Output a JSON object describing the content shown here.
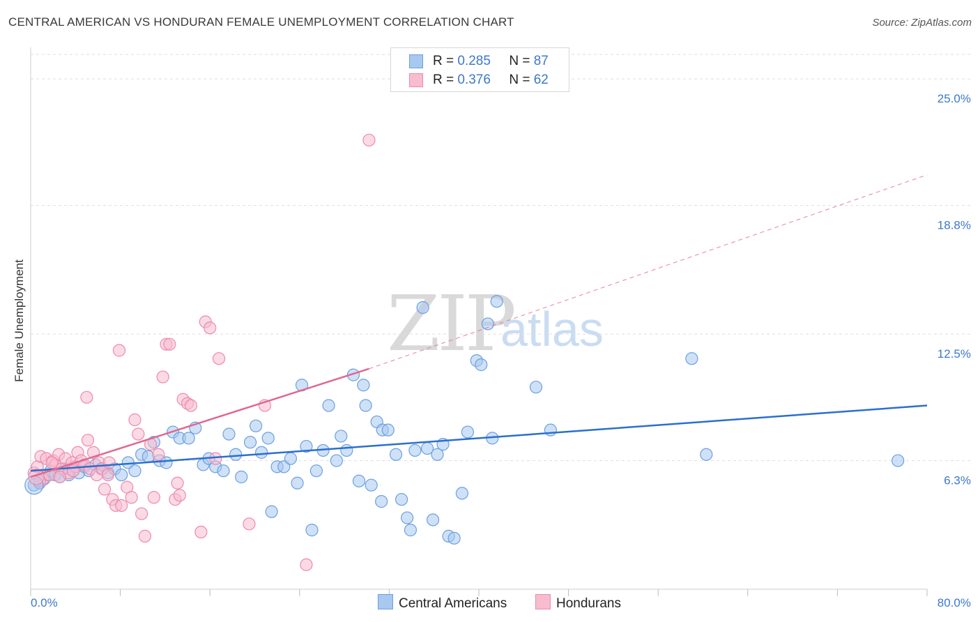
{
  "title": "CENTRAL AMERICAN VS HONDURAN FEMALE UNEMPLOYMENT CORRELATION CHART",
  "source": "Source: ZipAtlas.com",
  "watermark": {
    "zip": "ZIP",
    "atlas": "atlas"
  },
  "legend_top": {
    "rows": [
      {
        "r_label": "R =",
        "r_value": "0.285",
        "n_label": "N =",
        "n_value": "87"
      },
      {
        "r_label": "R =",
        "r_value": "0.376",
        "n_label": "N =",
        "n_value": "62"
      }
    ]
  },
  "legend_bottom": {
    "series1": "Central Americans",
    "series2": "Hondurans"
  },
  "colors": {
    "blue_fill": "#a8c8f0",
    "blue_stroke": "#6b9fe0",
    "blue_line": "#2a6fcf",
    "pink_fill": "#f8bccf",
    "pink_stroke": "#ec8aaa",
    "pink_line": "#e0688f",
    "tick_text": "#3d78c8",
    "grid": "#dddddd"
  },
  "chart_data": {
    "type": "scatter",
    "title": "CENTRAL AMERICAN VS HONDURAN FEMALE UNEMPLOYMENT CORRELATION CHART",
    "xlabel": "",
    "ylabel": "Female Unemployment",
    "xlim": [
      0,
      80
    ],
    "ylim": [
      0,
      26.2
    ],
    "x_tick_labels": [
      "0.0%",
      "80.0%"
    ],
    "y_ticks": [
      6.3,
      12.5,
      18.8,
      25.0
    ],
    "y_tick_labels": [
      "6.3%",
      "12.5%",
      "18.8%",
      "25.0%"
    ],
    "series": [
      {
        "name": "Central Americans",
        "R": 0.285,
        "N": 87,
        "trend": {
          "x": [
            0,
            80
          ],
          "y": [
            5.8,
            9.0
          ],
          "dashed_extension": false
        },
        "points": [
          [
            0.3,
            5.1
          ],
          [
            0.8,
            5.2
          ],
          [
            1.2,
            5.4
          ],
          [
            1.5,
            5.6
          ],
          [
            1.8,
            5.8
          ],
          [
            2.2,
            5.6
          ],
          [
            2.6,
            5.5
          ],
          [
            3.0,
            5.9
          ],
          [
            3.4,
            5.6
          ],
          [
            3.8,
            5.8
          ],
          [
            4.3,
            5.7
          ],
          [
            4.8,
            6.0
          ],
          [
            5.2,
            5.8
          ],
          [
            5.8,
            6.1
          ],
          [
            6.3,
            5.9
          ],
          [
            6.9,
            5.7
          ],
          [
            7.5,
            5.9
          ],
          [
            8.1,
            5.6
          ],
          [
            8.7,
            6.2
          ],
          [
            9.3,
            5.8
          ],
          [
            9.9,
            6.6
          ],
          [
            10.5,
            6.5
          ],
          [
            11.0,
            7.2
          ],
          [
            11.5,
            6.3
          ],
          [
            12.1,
            6.2
          ],
          [
            12.7,
            7.7
          ],
          [
            13.3,
            7.4
          ],
          [
            14.1,
            7.4
          ],
          [
            14.7,
            7.9
          ],
          [
            15.4,
            6.1
          ],
          [
            15.9,
            6.4
          ],
          [
            16.5,
            6.0
          ],
          [
            17.2,
            5.8
          ],
          [
            17.7,
            7.6
          ],
          [
            18.3,
            6.6
          ],
          [
            18.8,
            5.5
          ],
          [
            19.6,
            7.2
          ],
          [
            20.1,
            8.0
          ],
          [
            20.6,
            6.7
          ],
          [
            21.2,
            7.4
          ],
          [
            21.5,
            3.8
          ],
          [
            22.0,
            6.0
          ],
          [
            22.6,
            6.0
          ],
          [
            23.2,
            6.4
          ],
          [
            23.8,
            5.2
          ],
          [
            24.2,
            10.0
          ],
          [
            24.6,
            7.0
          ],
          [
            25.1,
            2.9
          ],
          [
            25.5,
            5.8
          ],
          [
            26.1,
            6.8
          ],
          [
            26.6,
            9.0
          ],
          [
            27.3,
            6.3
          ],
          [
            27.7,
            7.5
          ],
          [
            28.2,
            6.8
          ],
          [
            28.8,
            10.5
          ],
          [
            29.3,
            5.3
          ],
          [
            29.7,
            10.0
          ],
          [
            29.9,
            9.0
          ],
          [
            30.4,
            5.1
          ],
          [
            30.9,
            8.2
          ],
          [
            31.4,
            7.8
          ],
          [
            31.9,
            7.8
          ],
          [
            31.3,
            4.3
          ],
          [
            32.6,
            6.6
          ],
          [
            33.1,
            4.4
          ],
          [
            33.6,
            3.5
          ],
          [
            33.9,
            2.9
          ],
          [
            34.3,
            6.8
          ],
          [
            35.0,
            13.8
          ],
          [
            35.4,
            6.9
          ],
          [
            35.9,
            3.4
          ],
          [
            36.3,
            6.6
          ],
          [
            36.8,
            7.1
          ],
          [
            37.3,
            2.6
          ],
          [
            37.8,
            2.5
          ],
          [
            38.5,
            4.7
          ],
          [
            39.0,
            7.7
          ],
          [
            39.8,
            11.2
          ],
          [
            40.2,
            11.0
          ],
          [
            40.8,
            13.0
          ],
          [
            41.2,
            7.4
          ],
          [
            41.6,
            14.1
          ],
          [
            45.1,
            9.9
          ],
          [
            46.4,
            7.8
          ],
          [
            59.0,
            11.3
          ],
          [
            60.3,
            6.6
          ],
          [
            77.4,
            6.3
          ]
        ]
      },
      {
        "name": "Hondurans",
        "R": 0.376,
        "N": 62,
        "trend": {
          "x": [
            0,
            30.2
          ],
          "y": [
            5.5,
            10.8
          ],
          "dashed_to": {
            "x": 80.0,
            "y": 20.3
          }
        },
        "points": [
          [
            0.3,
            5.7
          ],
          [
            0.6,
            6.0
          ],
          [
            0.9,
            6.5
          ],
          [
            1.1,
            5.4
          ],
          [
            1.4,
            6.4
          ],
          [
            1.7,
            5.6
          ],
          [
            2.0,
            6.3
          ],
          [
            2.2,
            6.1
          ],
          [
            2.5,
            6.6
          ],
          [
            2.8,
            5.9
          ],
          [
            3.1,
            6.4
          ],
          [
            3.4,
            5.7
          ],
          [
            3.7,
            6.2
          ],
          [
            4.0,
            6.0
          ],
          [
            4.2,
            6.7
          ],
          [
            4.5,
            6.3
          ],
          [
            4.8,
            6.1
          ],
          [
            5.1,
            7.3
          ],
          [
            5.3,
            5.9
          ],
          [
            5.6,
            6.7
          ],
          [
            5.9,
            5.6
          ],
          [
            6.1,
            6.2
          ],
          [
            6.4,
            5.9
          ],
          [
            6.6,
            4.9
          ],
          [
            6.9,
            5.6
          ],
          [
            7.3,
            4.4
          ],
          [
            7.6,
            4.1
          ],
          [
            7.9,
            11.7
          ],
          [
            8.1,
            4.1
          ],
          [
            8.6,
            5.0
          ],
          [
            9.0,
            4.5
          ],
          [
            9.3,
            8.3
          ],
          [
            9.6,
            7.6
          ],
          [
            9.9,
            3.7
          ],
          [
            10.2,
            2.6
          ],
          [
            10.7,
            7.1
          ],
          [
            11.0,
            4.5
          ],
          [
            11.4,
            6.6
          ],
          [
            11.8,
            10.4
          ],
          [
            12.1,
            12.0
          ],
          [
            12.4,
            12.0
          ],
          [
            12.9,
            4.4
          ],
          [
            13.1,
            5.2
          ],
          [
            13.3,
            4.6
          ],
          [
            13.6,
            9.3
          ],
          [
            14.0,
            9.1
          ],
          [
            14.3,
            9.0
          ],
          [
            15.2,
            2.8
          ],
          [
            15.6,
            13.1
          ],
          [
            16.0,
            12.8
          ],
          [
            16.5,
            6.4
          ],
          [
            16.8,
            11.3
          ],
          [
            19.5,
            3.2
          ],
          [
            20.9,
            9.0
          ],
          [
            24.6,
            1.2
          ],
          [
            30.2,
            22.0
          ],
          [
            5.0,
            9.4
          ],
          [
            3.8,
            5.8
          ],
          [
            2.6,
            5.5
          ],
          [
            1.9,
            6.2
          ],
          [
            0.8,
            5.3
          ],
          [
            7.0,
            6.2
          ]
        ]
      }
    ]
  }
}
